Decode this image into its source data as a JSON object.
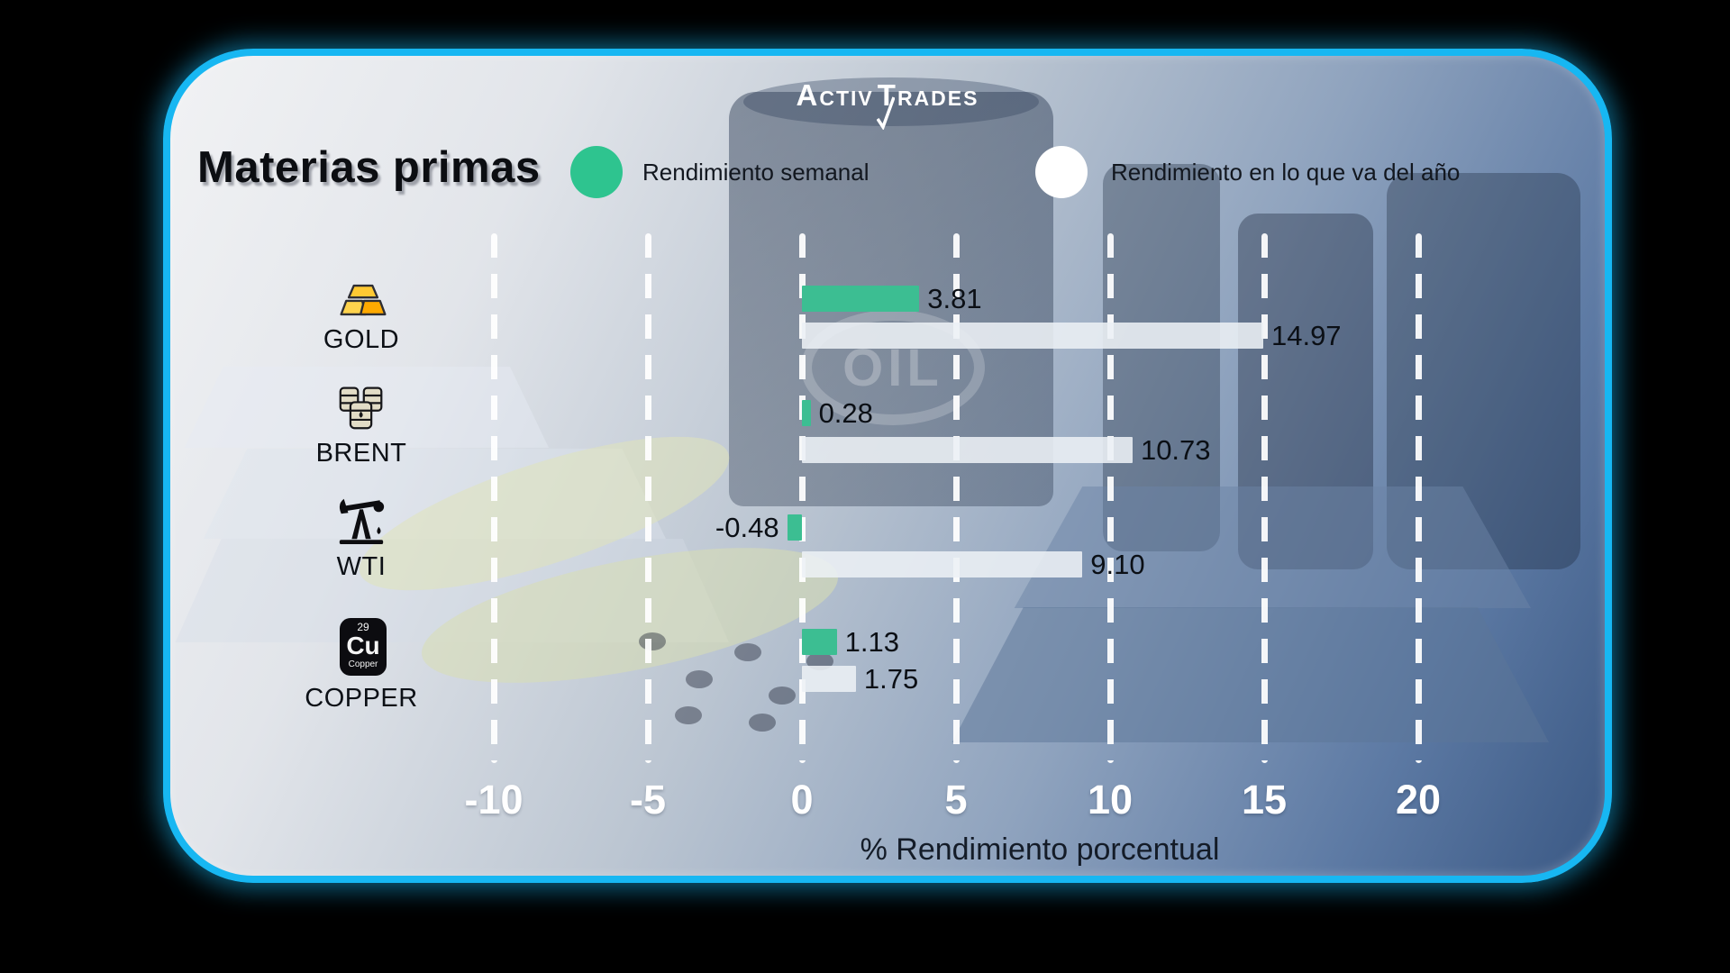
{
  "brand": {
    "activ": "Activ",
    "trades": "Trades"
  },
  "header": {
    "title": "Materias primas"
  },
  "legend": {
    "weekly": {
      "label": "Rendimiento semanal",
      "color": "#2EC48F"
    },
    "ytd": {
      "label": "Rendimiento en lo que va del año",
      "color": "#FFFFFF"
    }
  },
  "copper_tile": {
    "number": "29",
    "symbol": "Cu",
    "caption": "Copper"
  },
  "chart_data": {
    "type": "bar",
    "orientation": "horizontal",
    "title": "Materias primas",
    "categories": [
      "GOLD",
      "BRENT",
      "WTI",
      "COPPER"
    ],
    "category_icons": [
      "gold-ingots-icon",
      "oil-barrels-icon",
      "oil-pumpjack-icon",
      "copper-element-icon"
    ],
    "series": [
      {
        "name": "Rendimiento semanal",
        "color": "#3CBE92",
        "values": [
          3.81,
          0.28,
          -0.48,
          1.13
        ],
        "labels": [
          "3.81",
          "0.28",
          "-0.48",
          "1.13"
        ]
      },
      {
        "name": "Rendimiento en lo que va del año",
        "color": "#ECF0F5",
        "values": [
          14.97,
          10.73,
          9.1,
          1.75
        ],
        "labels": [
          "14.97",
          "10.73",
          "9.10",
          "1.75"
        ]
      }
    ],
    "xlabel": "% Rendimiento porcentual",
    "xticks": [
      "-10",
      "-5",
      "0",
      "5",
      "10",
      "15",
      "20"
    ],
    "xtick_values": [
      -10,
      -5,
      0,
      5,
      10,
      15,
      20
    ],
    "xlim": [
      -15,
      25
    ],
    "grid": "dashed-vertical-white",
    "legend_position": "top"
  }
}
